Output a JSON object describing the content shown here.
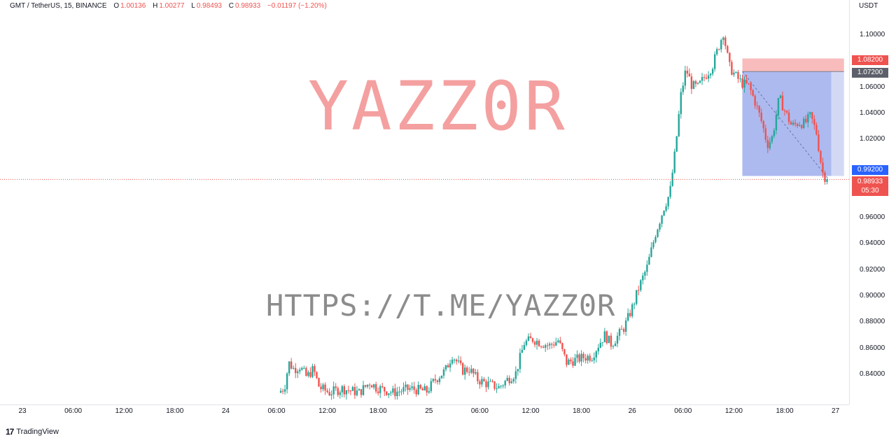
{
  "legend": {
    "symbol": "GMT / TetherUS, 15, BINANCE",
    "o_label": "O",
    "o_value": "1.00136",
    "h_label": "H",
    "h_value": "1.00277",
    "l_label": "L",
    "l_value": "0.98493",
    "c_label": "C",
    "c_value": "0.98933",
    "change": "−0.01197 (−1.20%)"
  },
  "watermark": {
    "title": "YAZZ0R",
    "url": "HTTPS://T.ME/YAZZ0R"
  },
  "price_axis": {
    "currency": "USDT",
    "ticks": [
      "1.10000",
      "1.06000",
      "1.04000",
      "1.02000",
      "0.96000",
      "0.94000",
      "0.92000",
      "0.90000",
      "0.88000",
      "0.86000",
      "0.84000"
    ],
    "labels": {
      "stop": "1.08200",
      "entry": "1.07200",
      "target": "0.99200",
      "last_price": "0.98933",
      "countdown": "05:30"
    }
  },
  "time_axis": {
    "ticks": [
      "23",
      "06:00",
      "12:00",
      "18:00",
      "24",
      "06:00",
      "12:00",
      "18:00",
      "25",
      "06:00",
      "12:00",
      "18:00",
      "26",
      "06:00",
      "12:00",
      "18:00",
      "27"
    ]
  },
  "brand": {
    "logo": "17",
    "name": "TradingView"
  },
  "colors": {
    "up": "#26a69a",
    "down": "#ef5350",
    "stop_zone": "#f7b5b5",
    "target_zone": "#a9b6ee",
    "target_zone_light": "#d3d9f5",
    "last_price_label": "#ef5350",
    "entry_label": "#5d606b",
    "target_label": "#2962ff"
  },
  "chart_data": {
    "type": "candlestick",
    "symbol": "GMT / TetherUS",
    "interval": "15",
    "ylim": [
      0.826,
      1.112
    ],
    "x_range_hours": [
      0,
      97
    ],
    "y_ticks": [
      1.1,
      1.06,
      1.04,
      1.02,
      0.96,
      0.94,
      0.92,
      0.9,
      0.88,
      0.86,
      0.84
    ],
    "price_path": [
      [
        30.5,
        0.826
      ],
      [
        31.2,
        0.83
      ],
      [
        31.7,
        0.849
      ],
      [
        32.3,
        0.844
      ],
      [
        33,
        0.846
      ],
      [
        33.8,
        0.838
      ],
      [
        34.6,
        0.844
      ],
      [
        35.3,
        0.83
      ],
      [
        36.5,
        0.826
      ],
      [
        38,
        0.829
      ],
      [
        40,
        0.826
      ],
      [
        41.3,
        0.834
      ],
      [
        42,
        0.83
      ],
      [
        44,
        0.826
      ],
      [
        46,
        0.829
      ],
      [
        48,
        0.827
      ],
      [
        49,
        0.836
      ],
      [
        50.2,
        0.843
      ],
      [
        51,
        0.855
      ],
      [
        52.2,
        0.843
      ],
      [
        53,
        0.844
      ],
      [
        54,
        0.836
      ],
      [
        55,
        0.833
      ],
      [
        56.5,
        0.83
      ],
      [
        57.5,
        0.836
      ],
      [
        58.5,
        0.841
      ],
      [
        59.5,
        0.864
      ],
      [
        60.5,
        0.867
      ],
      [
        61.5,
        0.864
      ],
      [
        62.5,
        0.862
      ],
      [
        63.5,
        0.866
      ],
      [
        64.5,
        0.849
      ],
      [
        65.5,
        0.851
      ],
      [
        66.5,
        0.853
      ],
      [
        67.5,
        0.854
      ],
      [
        68.3,
        0.863
      ],
      [
        69,
        0.87
      ],
      [
        69.8,
        0.863
      ],
      [
        70.5,
        0.869
      ],
      [
        71.3,
        0.876
      ],
      [
        72.3,
        0.892
      ],
      [
        73,
        0.906
      ],
      [
        74,
        0.922
      ],
      [
        75,
        0.948
      ],
      [
        76,
        0.968
      ],
      [
        76.7,
        0.979
      ],
      [
        77.3,
        1.01
      ],
      [
        78,
        1.054
      ],
      [
        78.6,
        1.074
      ],
      [
        79.3,
        1.061
      ],
      [
        80,
        1.06
      ],
      [
        80.8,
        1.068
      ],
      [
        81.7,
        1.076
      ],
      [
        82.4,
        1.09
      ],
      [
        83,
        1.102
      ],
      [
        83.7,
        1.076
      ],
      [
        84.4,
        1.069
      ],
      [
        85.2,
        1.063
      ],
      [
        86,
        1.061
      ],
      [
        86.8,
        1.048
      ],
      [
        87.6,
        1.032
      ],
      [
        88.2,
        1.016
      ],
      [
        88.8,
        1.022
      ],
      [
        89.6,
        1.052
      ],
      [
        90.4,
        1.04
      ],
      [
        91.1,
        1.03
      ],
      [
        91.9,
        1.033
      ],
      [
        92.6,
        1.032
      ],
      [
        93.3,
        1.038
      ],
      [
        94,
        1.025
      ],
      [
        94.7,
        0.995
      ],
      [
        95.2,
        0.989
      ]
    ],
    "last_price": 0.98933,
    "position": {
      "type": "short",
      "entry": 1.072,
      "stop": 1.082,
      "target": 0.992,
      "start_hour": 85,
      "end_hour": 97
    }
  }
}
